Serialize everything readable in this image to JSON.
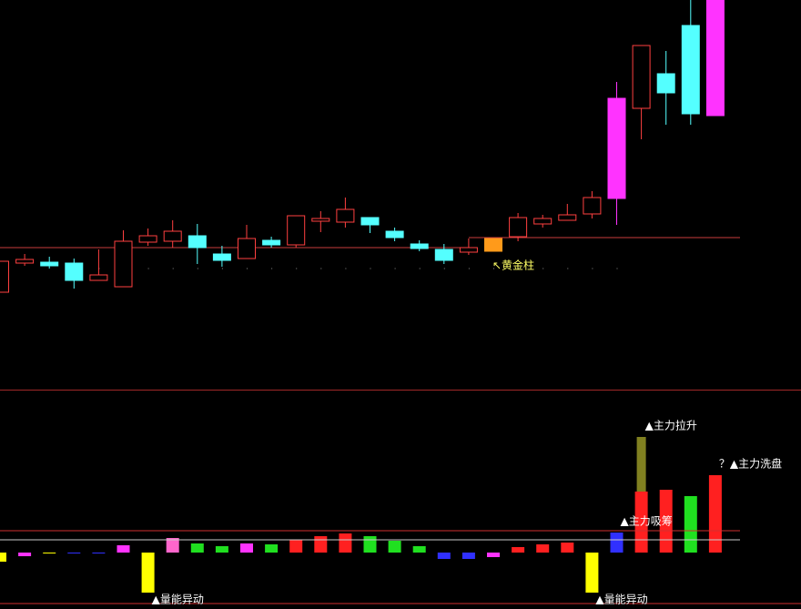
{
  "chart_data": [
    {
      "type": "candlestick",
      "open": [
        10.9,
        14.1,
        14.2,
        14.1,
        12.2,
        11.5,
        16.4,
        16.5,
        17.1,
        15.1,
        14.6,
        16.6,
        16.1,
        18.7,
        18.6,
        19.1,
        17.6,
        16.2,
        15.6,
        15.3,
        15.4,
        17.0,
        18.4,
        18.8,
        19.5,
        21.2,
        31.1,
        34.9,
        40.2,
        30.3
      ],
      "high": [
        14.3,
        15.1,
        14.8,
        14.6,
        15.6,
        17.7,
        17.9,
        18.8,
        18.4,
        16.0,
        18.3,
        17.0,
        19.3,
        19.8,
        21.3,
        19.1,
        18.0,
        16.6,
        16.2,
        16.8,
        16.8,
        19.6,
        19.4,
        20.6,
        22.0,
        34.0,
        38.0,
        37.4,
        43.0,
        43.0
      ],
      "low": [
        10.9,
        13.8,
        13.5,
        11.3,
        12.2,
        11.5,
        16.0,
        15.8,
        14.0,
        13.7,
        14.6,
        15.8,
        15.8,
        17.5,
        18.0,
        17.4,
        16.5,
        15.4,
        14.0,
        15.0,
        15.4,
        16.5,
        18.0,
        18.8,
        19.0,
        18.3,
        27.7,
        29.3,
        29.3,
        30.3
      ],
      "close": [
        14.3,
        14.5,
        13.8,
        12.2,
        12.8,
        16.5,
        17.1,
        17.6,
        15.8,
        14.4,
        16.8,
        16.1,
        19.3,
        19.0,
        20.0,
        18.3,
        16.9,
        15.7,
        14.4,
        15.8,
        16.8,
        19.1,
        19.0,
        19.4,
        21.3,
        32.2,
        38.0,
        32.8,
        30.5,
        43.0
      ],
      "colors": [
        "#ff4040",
        "#ff4040",
        "#54ffff",
        "#54ffff",
        "#ff4040",
        "#ff4040",
        "#ff4040",
        "#ff4040",
        "#54ffff",
        "#54ffff",
        "#ff4040",
        "#54ffff",
        "#ff4040",
        "#ff4040",
        "#ff4040",
        "#54ffff",
        "#54ffff",
        "#54ffff",
        "#54ffff",
        "#ff4040",
        "#ff9a1a",
        "#ff4040",
        "#ff4040",
        "#ff4040",
        "#ff4040",
        "#ff33ff",
        "#ff4040",
        "#54ffff",
        "#54ffff",
        "#ff33ff"
      ],
      "hollow_color": "#ff4040",
      "ylim": [
        0,
        43
      ],
      "lines": [
        {
          "value": 15.8,
          "from": 0,
          "to": 19,
          "color": "#c83c3c",
          "dash": false
        },
        {
          "value": 16.9,
          "from": 19,
          "to": 30,
          "color": "#c83c3c",
          "dash": false
        },
        {
          "value": 13.5,
          "from": 4,
          "to": 26,
          "color": "#888888",
          "dash": true
        }
      ],
      "annotations": [
        {
          "text": "↖黄金柱",
          "index": 20,
          "value": 14.2,
          "color": "#ffff66"
        }
      ]
    },
    {
      "type": "bar",
      "values": [
        -1.0,
        -0.4,
        -0.1,
        -0.1,
        -0.1,
        0.8,
        -4.4,
        1.6,
        1.0,
        0.7,
        1.0,
        0.9,
        1.4,
        1.8,
        2.1,
        1.8,
        1.3,
        0.7,
        -0.7,
        -0.7,
        -0.5,
        0.6,
        0.9,
        1.1,
        -4.4,
        2.2,
        6.7,
        6.9,
        6.2,
        8.5
      ],
      "colors": [
        "#ffff00",
        "#ff33ff",
        "#ffff00",
        "#3030ff",
        "#3030ff",
        "#ff33ff",
        "#ffff00",
        "#ff66cc",
        "#20e020",
        "#20e020",
        "#ff33ff",
        "#20e020",
        "#ff2020",
        "#ff2020",
        "#ff2020",
        "#20e020",
        "#20e020",
        "#20e020",
        "#3030ff",
        "#3030ff",
        "#ff33ff",
        "#ff2020",
        "#ff2020",
        "#ff2020",
        "#ffff00",
        "#3030ff",
        "#ff2020",
        "#ff2020",
        "#20e020",
        "#ff2020"
      ],
      "stack_values": [
        null,
        null,
        null,
        null,
        null,
        null,
        null,
        null,
        null,
        null,
        null,
        null,
        null,
        null,
        null,
        null,
        null,
        null,
        null,
        null,
        null,
        null,
        null,
        null,
        null,
        null,
        6.0,
        null,
        null,
        null
      ],
      "stack_color": "#808020",
      "ylim": [
        -6.2,
        17.7
      ],
      "lines": [
        {
          "value": 2.4,
          "from": 0,
          "to": 30,
          "color": "#d03030"
        },
        {
          "value": 1.4,
          "from": 0,
          "to": 30,
          "color": "#cccccc"
        },
        {
          "value": -5.6,
          "from": 0,
          "to": 33,
          "color": "#d03030"
        }
      ],
      "annotations": [
        {
          "text": "▲量能异动",
          "index": 6,
          "value": -4.4,
          "color": "#ffffff"
        },
        {
          "text": "▲量能异动",
          "index": 24,
          "value": -4.4,
          "color": "#ffffff"
        },
        {
          "text": "▲主力吸筹",
          "index": 25,
          "value": 2.2,
          "color": "#ffffff"
        },
        {
          "text": "▲主力拉升",
          "index": 26,
          "value": 12.7,
          "color": "#ffffff"
        },
        {
          "text": "？▲主力洗盘",
          "index": 29,
          "value": 8.5,
          "color": "#ffffff"
        }
      ]
    }
  ]
}
